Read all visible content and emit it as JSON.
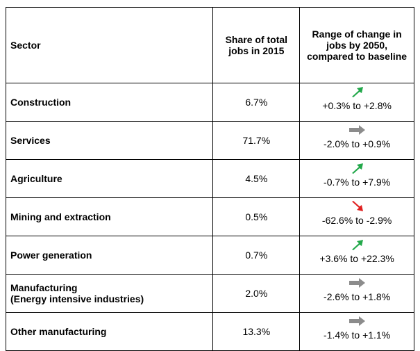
{
  "table": {
    "header": [
      "Sector",
      "Share of total jobs in 2015",
      "Range of change in jobs by 2050, compared to baseline"
    ],
    "rows": [
      [
        [
          "Construction"
        ],
        "6.7%",
        "+0.3% to +2.8%"
      ],
      [
        [
          "Services"
        ],
        "71.7%",
        "-2.0% to +0.9%"
      ],
      [
        [
          "Agriculture"
        ],
        "4.5%",
        "-0.7% to +7.9%"
      ],
      [
        [
          "Mining and extraction"
        ],
        "0.5%",
        "-62.6% to -2.9%"
      ],
      [
        [
          "Power generation"
        ],
        "0.7%",
        "+3.6% to +22.3%"
      ],
      [
        [
          "Manufacturing",
          "(Energy intensive industries)"
        ],
        "2.0%",
        "-2.6% to +1.8%"
      ],
      [
        [
          "Other manufacturing"
        ],
        "13.3%",
        "-1.4% to +1.1%"
      ]
    ]
  }
}
